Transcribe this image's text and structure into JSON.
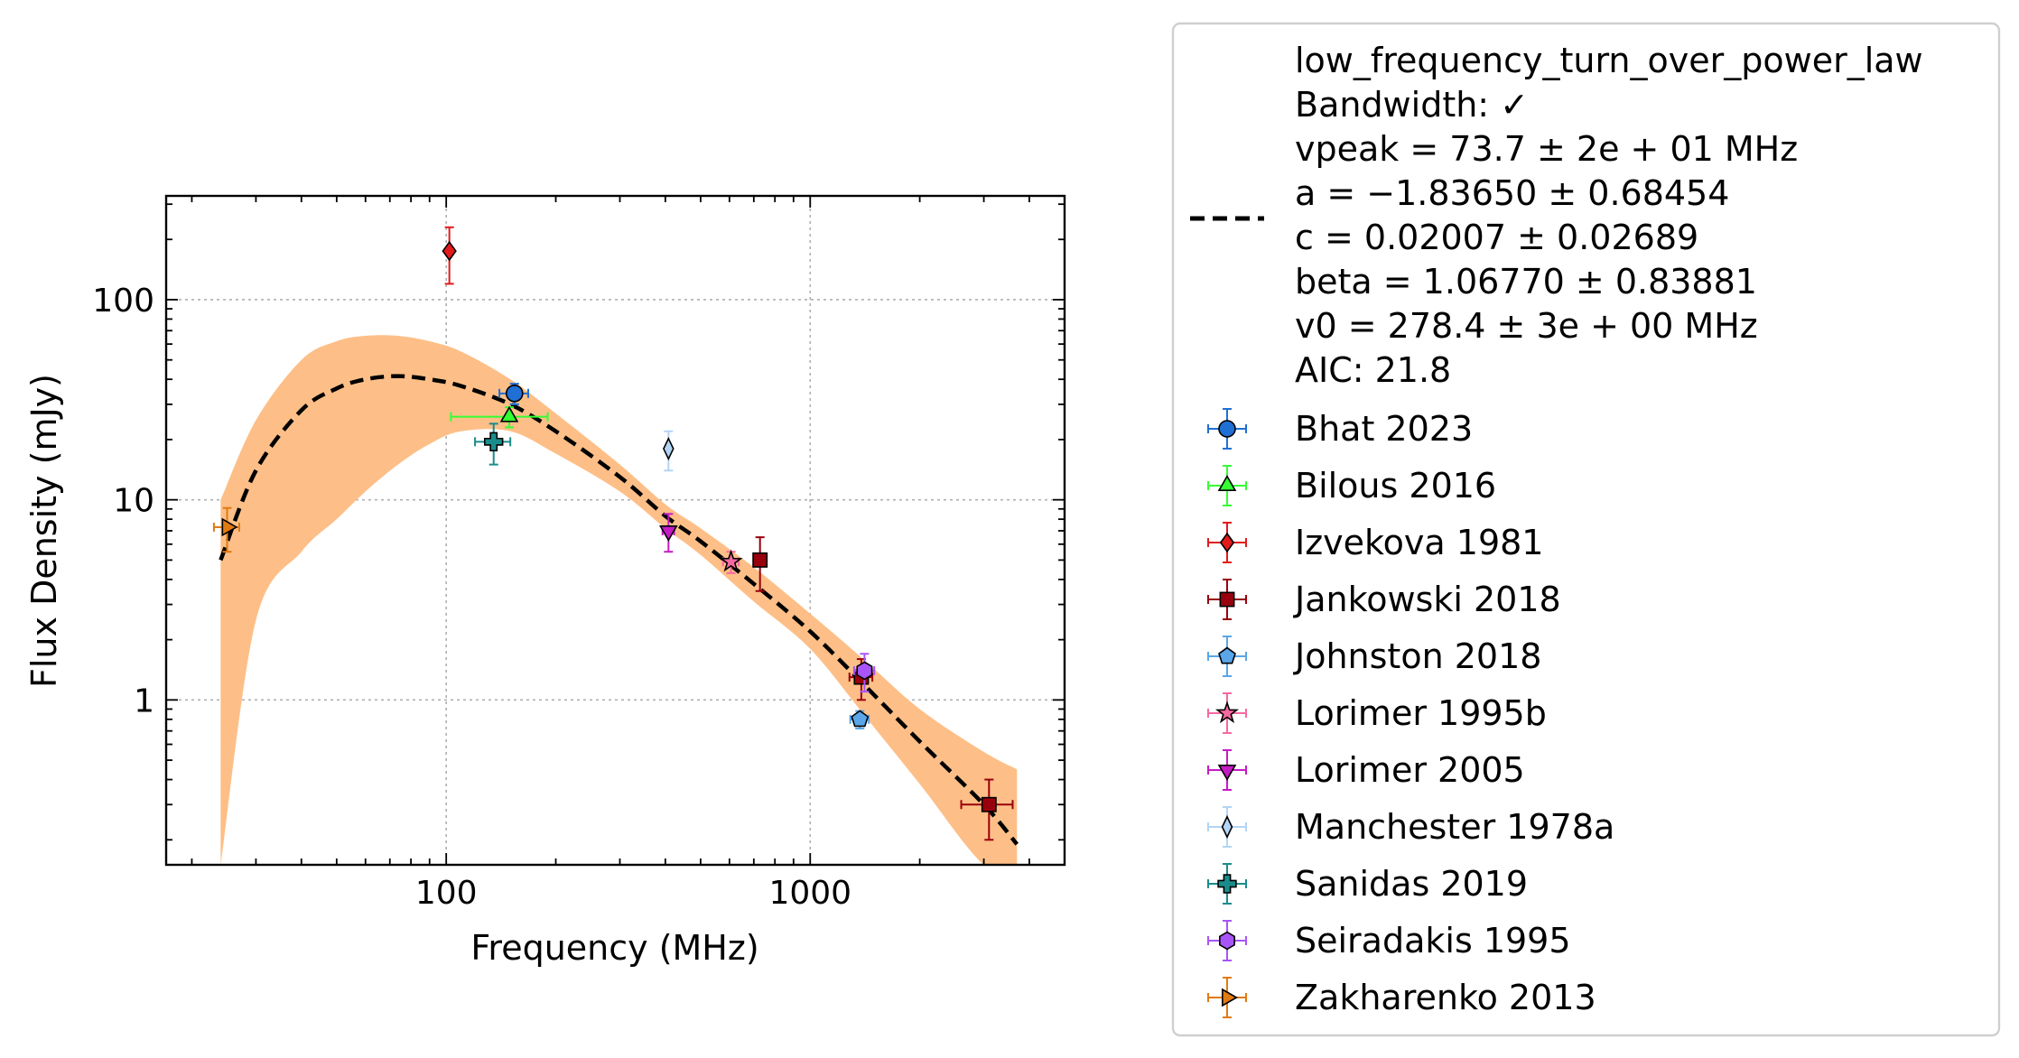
{
  "chart_data": {
    "type": "scatter",
    "xlabel": "Frequency (MHz)",
    "ylabel": "Flux Density (mJy)",
    "xscale": "log",
    "yscale": "log",
    "xlim": [
      17,
      5000
    ],
    "ylim": [
      0.15,
      330
    ],
    "xticks": [
      {
        "value": 100,
        "label": "100"
      },
      {
        "value": 1000,
        "label": "1000"
      }
    ],
    "yticks": [
      {
        "value": 1,
        "label": "1"
      },
      {
        "value": 10,
        "label": "10"
      },
      {
        "value": 100,
        "label": "100"
      }
    ],
    "grid": true,
    "legend_position": "outside-right",
    "fit": {
      "name": "low_frequency_turn_over_power_law",
      "bandwidth": "Bandwidth: ✓",
      "vpeak": "vpeak = 73.7 ± 2e + 01 MHz",
      "a": "a = −1.83650 ± 0.68454",
      "c": "c = 0.02007 ± 0.02689",
      "beta": "beta = 1.06770 ± 0.83881",
      "v0": "v0 = 278.4 ± 3e + 00 MHz",
      "aic": "AIC: 21.8",
      "x": [
        24,
        30,
        40,
        50,
        60,
        73.7,
        90,
        110,
        150,
        200,
        300,
        400,
        500,
        700,
        1000,
        1400,
        2000,
        3000,
        3700
      ],
      "y": [
        5.0,
        14,
        28,
        36,
        40,
        41.5,
        40,
        37,
        30,
        22,
        13,
        8.3,
        6.2,
        3.8,
        2.2,
        1.2,
        0.62,
        0.3,
        0.19
      ],
      "band_upper": [
        10,
        25,
        50,
        62,
        66,
        66,
        62,
        55,
        40,
        27,
        15,
        9.5,
        7.2,
        4.6,
        2.7,
        1.6,
        0.9,
        0.55,
        0.45
      ],
      "band_lower": [
        0.15,
        2.5,
        5.5,
        8,
        11,
        15,
        19,
        22,
        22,
        17,
        11,
        7.2,
        5.3,
        3.1,
        1.8,
        0.85,
        0.38,
        0.15,
        0.15
      ],
      "color": "#000000",
      "band_color": "#fdbf87"
    },
    "series": [
      {
        "name": "Bhat 2023",
        "marker": "circle",
        "color": "#1f6fd4",
        "points": [
          {
            "x": 154,
            "y": 34,
            "xerr": [
              14,
              14
            ],
            "yerr": [
              4,
              4
            ]
          }
        ]
      },
      {
        "name": "Bilous 2016",
        "marker": "triangle-up",
        "color": "#33ff33",
        "points": [
          {
            "x": 149,
            "y": 26,
            "xerr": [
              46,
              41
            ],
            "yerr": [
              3,
              3
            ]
          }
        ]
      },
      {
        "name": "Izvekova 1981",
        "marker": "diamond",
        "color": "#e31a1c",
        "points": [
          {
            "x": 102,
            "y": 175,
            "xerr": [
              0,
              0
            ],
            "yerr": [
              55,
              55
            ]
          }
        ]
      },
      {
        "name": "Jankowski 2018",
        "marker": "square",
        "color": "#99000d",
        "points": [
          {
            "x": 728,
            "y": 5.0,
            "xerr": [
              0,
              0
            ],
            "yerr": [
              1.5,
              1.5
            ]
          },
          {
            "x": 1382,
            "y": 1.3,
            "xerr": [
              100,
              100
            ],
            "yerr": [
              0.3,
              0.3
            ]
          },
          {
            "x": 3100,
            "y": 0.3,
            "xerr": [
              500,
              500
            ],
            "yerr": [
              0.1,
              0.1
            ]
          }
        ]
      },
      {
        "name": "Johnston 2018",
        "marker": "pentagon",
        "color": "#5aa6e8",
        "points": [
          {
            "x": 1369,
            "y": 0.8,
            "xerr": [
              80,
              80
            ],
            "yerr": [
              0.08,
              0.08
            ]
          }
        ]
      },
      {
        "name": "Lorimer 1995b",
        "marker": "star",
        "color": "#f768a1",
        "points": [
          {
            "x": 606,
            "y": 4.9,
            "xerr": [
              30,
              30
            ],
            "yerr": [
              0.6,
              0.6
            ]
          }
        ]
      },
      {
        "name": "Lorimer 2005",
        "marker": "triangle-down",
        "color": "#c51bc5",
        "points": [
          {
            "x": 408,
            "y": 7.0,
            "xerr": [
              15,
              15
            ],
            "yerr": [
              1.5,
              1.5
            ]
          }
        ]
      },
      {
        "name": "Manchester 1978a",
        "marker": "thin-diamond",
        "color": "#b3d4f5",
        "points": [
          {
            "x": 408,
            "y": 18,
            "xerr": [
              0,
              0
            ],
            "yerr": [
              4,
              4
            ]
          }
        ]
      },
      {
        "name": "Sanidas 2019",
        "marker": "plus",
        "color": "#1b8c8c",
        "points": [
          {
            "x": 135,
            "y": 19.5,
            "xerr": [
              15,
              15
            ],
            "yerr": [
              4.5,
              4.5
            ]
          }
        ]
      },
      {
        "name": "Seiradakis 1995",
        "marker": "hexagon",
        "color": "#a855f7",
        "points": [
          {
            "x": 1410,
            "y": 1.4,
            "xerr": [
              90,
              90
            ],
            "yerr": [
              0.3,
              0.3
            ]
          }
        ]
      },
      {
        "name": "Zakharenko 2013",
        "marker": "triangle-right",
        "color": "#e07b12",
        "points": [
          {
            "x": 25,
            "y": 7.3,
            "xerr": [
              2,
              2
            ],
            "yerr": [
              1.8,
              1.8
            ]
          }
        ]
      }
    ]
  }
}
